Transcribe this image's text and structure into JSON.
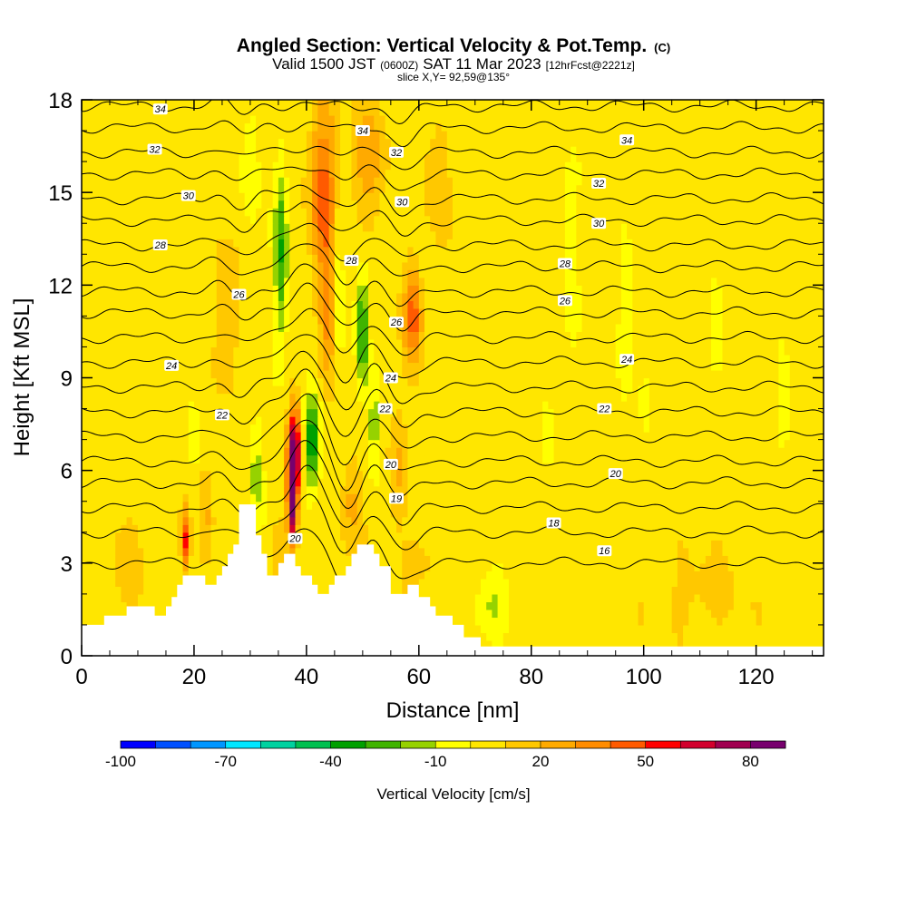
{
  "header": {
    "title": "Angled Section: Vertical Velocity & Pot.Temp.",
    "title_tag": "(C)",
    "valid_pre": "Valid 1500 JST",
    "valid_z": "(0600Z)",
    "valid_date": "SAT 11 Mar 2023",
    "valid_fcst": "[12hrFcst@2221z]",
    "slice": "slice X,Y= 92,59@135°"
  },
  "colorbar": {
    "label": "Vertical Velocity [cm/s]",
    "tick_labels": [
      "-100",
      "-70",
      "-40",
      "-10",
      "20",
      "50",
      "80"
    ],
    "tick_values": [
      -100,
      -70,
      -40,
      -10,
      20,
      50,
      80
    ],
    "range": [
      -100,
      90
    ],
    "step": 10,
    "colors": [
      "#0000ff",
      "#0050ff",
      "#0096ff",
      "#00e6ff",
      "#00d2a0",
      "#00c050",
      "#00a000",
      "#40b400",
      "#96d200",
      "#ffff00",
      "#ffe600",
      "#ffc800",
      "#ffaa00",
      "#ff8c00",
      "#ff5a00",
      "#ff0000",
      "#d2002d",
      "#a00050",
      "#78006e"
    ]
  },
  "chart_data": {
    "type": "contour",
    "xlabel": "Distance [nm]",
    "ylabel": "Height [Kft MSL]",
    "xlim": [
      0,
      132
    ],
    "ylim": [
      0,
      18
    ],
    "x_ticks": [
      0,
      20,
      40,
      60,
      80,
      100,
      120
    ],
    "y_ticks": [
      0,
      3,
      6,
      9,
      12,
      15,
      18
    ],
    "background_value": 5,
    "terrain": [
      [
        0,
        1
      ],
      [
        4,
        1
      ],
      [
        4,
        1.3
      ],
      [
        8,
        1.3
      ],
      [
        8,
        1.6
      ],
      [
        13,
        1.6
      ],
      [
        13,
        1.3
      ],
      [
        15,
        1.3
      ],
      [
        15,
        1.6
      ],
      [
        16,
        1.6
      ],
      [
        16,
        1.9
      ],
      [
        17,
        1.9
      ],
      [
        17,
        2.3
      ],
      [
        18,
        2.3
      ],
      [
        18,
        2.6
      ],
      [
        22,
        2.6
      ],
      [
        22,
        2.3
      ],
      [
        24,
        2.3
      ],
      [
        24,
        2.6
      ],
      [
        25,
        2.6
      ],
      [
        25,
        2.9
      ],
      [
        26,
        2.9
      ],
      [
        26,
        3.3
      ],
      [
        27,
        3.3
      ],
      [
        27,
        3.6
      ],
      [
        28,
        3.6
      ],
      [
        28,
        4.9
      ],
      [
        31,
        4.9
      ],
      [
        31,
        3.9
      ],
      [
        32,
        3.9
      ],
      [
        32,
        3.3
      ],
      [
        33,
        3.3
      ],
      [
        33,
        2.6
      ],
      [
        35,
        2.6
      ],
      [
        35,
        3.0
      ],
      [
        36,
        3.0
      ],
      [
        36,
        3.3
      ],
      [
        38,
        3.3
      ],
      [
        38,
        2.9
      ],
      [
        39,
        2.9
      ],
      [
        39,
        2.6
      ],
      [
        41,
        2.6
      ],
      [
        41,
        2.3
      ],
      [
        42,
        2.3
      ],
      [
        42,
        2.0
      ],
      [
        44,
        2.0
      ],
      [
        44,
        2.3
      ],
      [
        45,
        2.3
      ],
      [
        45,
        2.6
      ],
      [
        47,
        2.6
      ],
      [
        47,
        2.9
      ],
      [
        48,
        2.9
      ],
      [
        48,
        3.3
      ],
      [
        49,
        3.3
      ],
      [
        49,
        3.6
      ],
      [
        52,
        3.6
      ],
      [
        52,
        3.3
      ],
      [
        53,
        3.3
      ],
      [
        53,
        2.9
      ],
      [
        55,
        2.9
      ],
      [
        55,
        2.0
      ],
      [
        58,
        2.0
      ],
      [
        58,
        2.3
      ],
      [
        60,
        2.3
      ],
      [
        60,
        1.9
      ],
      [
        62,
        1.9
      ],
      [
        62,
        1.6
      ],
      [
        63,
        1.6
      ],
      [
        63,
        1.3
      ],
      [
        66,
        1.3
      ],
      [
        66,
        1.0
      ],
      [
        68,
        1.0
      ],
      [
        68,
        0.6
      ],
      [
        71,
        0.6
      ],
      [
        71,
        0.3
      ],
      [
        132,
        0.3
      ]
    ],
    "updrafts": [
      [
        37.5,
        5.3,
        0.8,
        1.6,
        95
      ],
      [
        38,
        6.8,
        1.2,
        1.4,
        60
      ],
      [
        43,
        15,
        2.5,
        3,
        38
      ],
      [
        44,
        11,
        1.5,
        2,
        25
      ],
      [
        51,
        16,
        3,
        1.8,
        22
      ],
      [
        59,
        11,
        1.6,
        1.6,
        40
      ],
      [
        56,
        6,
        1.5,
        2,
        15
      ],
      [
        18.5,
        3.8,
        0.8,
        1,
        50
      ],
      [
        22,
        4.5,
        1,
        1.5,
        15
      ],
      [
        48,
        5,
        1.6,
        1.5,
        20
      ],
      [
        26,
        11,
        2,
        2.5,
        15
      ],
      [
        63,
        15.5,
        2.5,
        2,
        12
      ],
      [
        8,
        3,
        3,
        1.5,
        10
      ],
      [
        110,
        2,
        8,
        1.5,
        8
      ],
      [
        60,
        3,
        3,
        1,
        12
      ],
      [
        35,
        3.5,
        1.5,
        1,
        15
      ],
      [
        50,
        3,
        1,
        1,
        15
      ]
    ],
    "downdrafts": [
      [
        41,
        7,
        1.4,
        1.6,
        -40
      ],
      [
        35.5,
        13,
        1.2,
        3,
        -35
      ],
      [
        50,
        10.5,
        1,
        2,
        -40
      ],
      [
        52,
        7.5,
        1,
        1.5,
        -25
      ],
      [
        45.5,
        12,
        1,
        3,
        -20
      ],
      [
        31,
        6,
        1.2,
        1.8,
        -20
      ],
      [
        73,
        1.8,
        2.5,
        1.2,
        -18
      ],
      [
        97,
        11,
        1.3,
        2,
        -14
      ],
      [
        87,
        13,
        1.2,
        3,
        -15
      ],
      [
        113,
        11,
        1.2,
        2.5,
        -12
      ],
      [
        125,
        9,
        1,
        2,
        -10
      ],
      [
        20,
        7,
        1,
        1.2,
        -8
      ],
      [
        100,
        8,
        1,
        2,
        -8
      ],
      [
        83,
        7,
        1,
        1.5,
        -6
      ],
      [
        30,
        16,
        1.5,
        2,
        -15
      ]
    ],
    "theta_levels": [
      {
        "value": 16,
        "y": 3.0,
        "label": "16"
      },
      {
        "value": 17,
        "y": 4.0
      },
      {
        "value": 18,
        "y": 4.8,
        "label": "18"
      },
      {
        "value": 19,
        "y": 5.6,
        "label": "19"
      },
      {
        "value": 20,
        "y": 6.3,
        "label": "20"
      },
      {
        "value": 21,
        "y": 7.1
      },
      {
        "value": 22,
        "y": 7.9,
        "label": "22"
      },
      {
        "value": 23,
        "y": 8.7
      },
      {
        "value": 24,
        "y": 9.5,
        "label": "24"
      },
      {
        "value": 25,
        "y": 10.3
      },
      {
        "value": 26,
        "y": 11.1,
        "label": "26"
      },
      {
        "value": 27,
        "y": 11.8
      },
      {
        "value": 28,
        "y": 12.6,
        "label": "28"
      },
      {
        "value": 29,
        "y": 13.3
      },
      {
        "value": 30,
        "y": 14.1,
        "label": "30"
      },
      {
        "value": 31,
        "y": 14.8
      },
      {
        "value": 32,
        "y": 15.6,
        "label": "32"
      },
      {
        "value": 33,
        "y": 16.3
      },
      {
        "value": 34,
        "y": 17.1,
        "label": "34"
      },
      {
        "value": 35,
        "y": 17.8
      }
    ],
    "theta_label_pos": [
      {
        "text": "34",
        "x": 14,
        "y": 17.7
      },
      {
        "text": "32",
        "x": 13,
        "y": 16.4
      },
      {
        "text": "30",
        "x": 19,
        "y": 14.9
      },
      {
        "text": "28",
        "x": 14,
        "y": 13.3
      },
      {
        "text": "26",
        "x": 28,
        "y": 11.7
      },
      {
        "text": "24",
        "x": 16,
        "y": 9.4
      },
      {
        "text": "22",
        "x": 25,
        "y": 7.8
      },
      {
        "text": "34",
        "x": 50,
        "y": 17.0
      },
      {
        "text": "32",
        "x": 56,
        "y": 16.3
      },
      {
        "text": "30",
        "x": 57,
        "y": 14.7
      },
      {
        "text": "28",
        "x": 48,
        "y": 12.8
      },
      {
        "text": "26",
        "x": 56,
        "y": 10.8
      },
      {
        "text": "24",
        "x": 55,
        "y": 9.0
      },
      {
        "text": "22",
        "x": 54,
        "y": 8.0
      },
      {
        "text": "20",
        "x": 55,
        "y": 6.2
      },
      {
        "text": "19",
        "x": 56,
        "y": 5.1
      },
      {
        "text": "34",
        "x": 97,
        "y": 16.7
      },
      {
        "text": "32",
        "x": 92,
        "y": 15.3
      },
      {
        "text": "30",
        "x": 92,
        "y": 14.0
      },
      {
        "text": "28",
        "x": 86,
        "y": 12.7
      },
      {
        "text": "26",
        "x": 86,
        "y": 11.5
      },
      {
        "text": "24",
        "x": 97,
        "y": 9.6
      },
      {
        "text": "22",
        "x": 93,
        "y": 8.0
      },
      {
        "text": "20",
        "x": 95,
        "y": 5.9
      },
      {
        "text": "18",
        "x": 84,
        "y": 4.3
      },
      {
        "text": "16",
        "x": 93,
        "y": 3.4
      },
      {
        "text": "20",
        "x": 38,
        "y": 3.8
      }
    ]
  }
}
